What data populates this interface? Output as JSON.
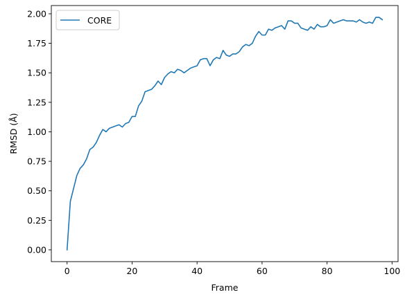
{
  "chart_data": {
    "type": "line",
    "xlabel": "Frame",
    "ylabel": "RMSD (Å)",
    "xlim": [
      -4.85,
      101.85
    ],
    "ylim": [
      -0.1,
      2.07
    ],
    "xticks": [
      0,
      20,
      40,
      60,
      80,
      100
    ],
    "xtick_labels": [
      "0",
      "20",
      "40",
      "60",
      "80",
      "100"
    ],
    "yticks": [
      0,
      0.25,
      0.5,
      0.75,
      1.0,
      1.25,
      1.5,
      1.75,
      2.0
    ],
    "ytick_labels": [
      "0.00",
      "0.25",
      "0.50",
      "0.75",
      "1.00",
      "1.25",
      "1.50",
      "1.75",
      "2.00"
    ],
    "grid": false,
    "legend_placement": "top-left",
    "series": [
      {
        "name": "CORE",
        "color": "#1f77b4",
        "x": [
          0,
          1,
          2,
          3,
          4,
          5,
          6,
          7,
          8,
          9,
          10,
          11,
          12,
          13,
          14,
          15,
          16,
          17,
          18,
          19,
          20,
          21,
          22,
          23,
          24,
          25,
          26,
          27,
          28,
          29,
          30,
          31,
          32,
          33,
          34,
          35,
          36,
          37,
          38,
          39,
          40,
          41,
          42,
          43,
          44,
          45,
          46,
          47,
          48,
          49,
          50,
          51,
          52,
          53,
          54,
          55,
          56,
          57,
          58,
          59,
          60,
          61,
          62,
          63,
          64,
          65,
          66,
          67,
          68,
          69,
          70,
          71,
          72,
          73,
          74,
          75,
          76,
          77,
          78,
          79,
          80,
          81,
          82,
          83,
          84,
          85,
          86,
          87,
          88,
          89,
          90,
          91,
          92,
          93,
          94,
          95,
          96,
          97
        ],
        "values": [
          0.0,
          0.41,
          0.52,
          0.63,
          0.69,
          0.72,
          0.77,
          0.85,
          0.87,
          0.91,
          0.97,
          1.02,
          1.0,
          1.03,
          1.04,
          1.05,
          1.06,
          1.04,
          1.07,
          1.08,
          1.13,
          1.13,
          1.22,
          1.26,
          1.34,
          1.35,
          1.36,
          1.39,
          1.43,
          1.4,
          1.46,
          1.49,
          1.51,
          1.5,
          1.53,
          1.52,
          1.5,
          1.52,
          1.54,
          1.55,
          1.56,
          1.61,
          1.62,
          1.62,
          1.56,
          1.61,
          1.63,
          1.62,
          1.69,
          1.65,
          1.64,
          1.66,
          1.66,
          1.68,
          1.72,
          1.74,
          1.73,
          1.75,
          1.81,
          1.85,
          1.82,
          1.82,
          1.87,
          1.86,
          1.88,
          1.89,
          1.9,
          1.87,
          1.94,
          1.94,
          1.92,
          1.92,
          1.88,
          1.87,
          1.86,
          1.89,
          1.87,
          1.91,
          1.89,
          1.89,
          1.9,
          1.95,
          1.92,
          1.93,
          1.94,
          1.95,
          1.94,
          1.94,
          1.94,
          1.93,
          1.95,
          1.93,
          1.92,
          1.93,
          1.92,
          1.97,
          1.97,
          1.95
        ]
      }
    ]
  }
}
